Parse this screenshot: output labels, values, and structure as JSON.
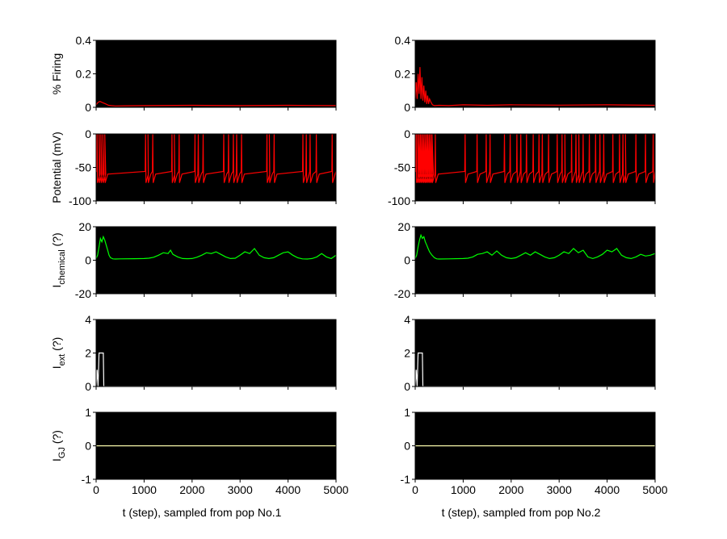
{
  "figure": {
    "background": "#ffffff",
    "axes_background": "#000000",
    "x_ticks": [
      "0",
      "1000",
      "2000",
      "3000",
      "4000",
      "5000"
    ],
    "columns": [
      {
        "xlabel": "t (step), sampled from pop No.1"
      },
      {
        "xlabel": "t (step), sampled from pop No.2"
      }
    ]
  },
  "chart_data": [
    {
      "type": "line",
      "panel": "firing-pop1",
      "ylabel": "% Firing",
      "ylim": [
        0,
        0.4
      ],
      "yticks": [
        "0",
        "0.2",
        "0.4"
      ],
      "xlim": [
        0,
        5000
      ],
      "color": "#ff0000",
      "grid": false,
      "x": [
        0,
        40,
        80,
        120,
        160,
        200,
        260,
        320,
        400,
        600,
        1000,
        2000,
        3000,
        4000,
        5000
      ],
      "values": [
        0.015,
        0.03,
        0.035,
        0.03,
        0.025,
        0.02,
        0.012,
        0.01,
        0.008,
        0.009,
        0.01,
        0.012,
        0.01,
        0.012,
        0.01
      ]
    },
    {
      "type": "line",
      "panel": "potential-pop1",
      "ylabel": "Potential (mV)",
      "ylim": [
        -100,
        0
      ],
      "yticks": [
        "-100",
        "-50",
        "0"
      ],
      "xlim": [
        0,
        5000
      ],
      "color": "#ff0000",
      "grid": false,
      "rest_mV": -56,
      "peak_mV": 0,
      "trough_mV": -73,
      "spike_times": [
        20,
        60,
        100,
        140,
        180,
        1030,
        1080,
        1180,
        1580,
        1630,
        1730,
        2060,
        2130,
        2230,
        2660,
        2760,
        2860,
        2930,
        3030,
        3560,
        3610,
        3710,
        4310,
        4380,
        4460,
        4590,
        4920
      ]
    },
    {
      "type": "line",
      "panel": "ichem-pop1",
      "ylabel": "Ichemical (?)",
      "ylabel_main": "I",
      "ylabel_sub": "chemical",
      "ylabel_unit": " (?)",
      "ylim": [
        -20,
        20
      ],
      "yticks": [
        "-20",
        "0",
        "20"
      ],
      "xlim": [
        0,
        5000
      ],
      "color": "#00ff00",
      "grid": false,
      "x": [
        0,
        30,
        60,
        90,
        120,
        150,
        180,
        210,
        240,
        270,
        300,
        350,
        400,
        500,
        800,
        1000,
        1100,
        1200,
        1300,
        1400,
        1500,
        1550,
        1600,
        1700,
        1800,
        1900,
        2000,
        2100,
        2200,
        2300,
        2400,
        2500,
        2600,
        2700,
        2800,
        2900,
        3000,
        3100,
        3200,
        3300,
        3400,
        3500,
        3600,
        3700,
        3800,
        3900,
        4000,
        4100,
        4200,
        4300,
        4400,
        4500,
        4600,
        4700,
        4800,
        4900,
        5000
      ],
      "values": [
        1,
        3,
        8,
        13,
        11,
        14,
        12,
        9,
        6,
        3,
        1.5,
        0.8,
        0.7,
        0.8,
        0.9,
        1,
        1.2,
        1.8,
        3,
        4.5,
        4,
        6,
        3.5,
        2,
        1,
        0.9,
        1,
        1.8,
        3,
        4.5,
        4,
        5,
        3.5,
        2,
        1,
        1.2,
        3,
        5,
        4,
        7,
        3,
        1.5,
        1,
        1.5,
        3,
        4.5,
        5,
        3,
        1.5,
        0.8,
        0.7,
        1,
        2,
        4,
        2,
        1,
        3
      ]
    },
    {
      "type": "line",
      "panel": "iext-pop1",
      "ylabel": "Iext (?)",
      "ylabel_main": "I",
      "ylabel_sub": "ext",
      "ylabel_unit": " (?)",
      "ylim": [
        0,
        4
      ],
      "yticks": [
        "0",
        "2",
        "4"
      ],
      "xlim": [
        0,
        5000
      ],
      "color": "#ffffff",
      "grid": false,
      "x": [
        0,
        20,
        40,
        60,
        80,
        100,
        120,
        150,
        160,
        5000
      ],
      "values": [
        0,
        1,
        0,
        2,
        2,
        2,
        2,
        2,
        0,
        0
      ]
    },
    {
      "type": "line",
      "panel": "igj-pop1",
      "ylabel": "IGJ (?)",
      "ylabel_main": "I",
      "ylabel_sub": "GJ",
      "ylabel_unit": " (?)",
      "ylim": [
        -1,
        1
      ],
      "yticks": [
        "-1",
        "0",
        "1"
      ],
      "xlim": [
        0,
        5000
      ],
      "color": "#ffffb0",
      "grid": false,
      "x": [
        0,
        5000
      ],
      "values": [
        0,
        0
      ]
    },
    {
      "type": "line",
      "panel": "firing-pop2",
      "ylabel": "",
      "ylim": [
        0,
        0.4
      ],
      "yticks": [
        "0",
        "0.2",
        "0.4"
      ],
      "xlim": [
        0,
        5000
      ],
      "color": "#ff0000",
      "grid": false,
      "x": [
        0,
        20,
        40,
        60,
        80,
        100,
        120,
        140,
        160,
        180,
        200,
        220,
        240,
        260,
        280,
        300,
        330,
        360,
        400,
        500,
        700,
        1000,
        1500,
        2000,
        3000,
        4000,
        5000
      ],
      "values": [
        0.05,
        0.15,
        0.05,
        0.2,
        0.08,
        0.24,
        0.05,
        0.18,
        0.04,
        0.13,
        0.03,
        0.1,
        0.02,
        0.07,
        0.02,
        0.05,
        0.03,
        0.015,
        0.01,
        0.012,
        0.01,
        0.015,
        0.012,
        0.015,
        0.013,
        0.015,
        0.012
      ]
    },
    {
      "type": "line",
      "panel": "potential-pop2",
      "ylabel": "",
      "ylim": [
        -100,
        0
      ],
      "yticks": [
        "-100",
        "-50",
        "0"
      ],
      "xlim": [
        0,
        5000
      ],
      "color": "#ff0000",
      "grid": false,
      "rest_mV": -56,
      "peak_mV": 0,
      "trough_mV": -73,
      "spike_times": [
        20,
        50,
        80,
        110,
        140,
        170,
        200,
        230,
        260,
        290,
        320,
        350,
        420,
        1040,
        1290,
        1480,
        1560,
        1860,
        1980,
        2120,
        2200,
        2320,
        2460,
        2580,
        2650,
        2780,
        2960,
        3060,
        3120,
        3260,
        3350,
        3410,
        3500,
        3630,
        3760,
        3850,
        3930,
        4120,
        4260,
        4330,
        4380,
        4600,
        4800,
        4960
      ]
    },
    {
      "type": "line",
      "panel": "ichem-pop2",
      "ylabel": "",
      "ylim": [
        -20,
        20
      ],
      "yticks": [
        "-20",
        "0",
        "20"
      ],
      "xlim": [
        0,
        5000
      ],
      "color": "#00ff00",
      "grid": false,
      "x": [
        0,
        30,
        60,
        90,
        120,
        150,
        180,
        210,
        240,
        270,
        300,
        350,
        400,
        450,
        500,
        700,
        1000,
        1100,
        1200,
        1300,
        1400,
        1500,
        1600,
        1700,
        1800,
        1900,
        2000,
        2100,
        2200,
        2300,
        2400,
        2500,
        2600,
        2700,
        2800,
        2900,
        3000,
        3100,
        3200,
        3300,
        3400,
        3500,
        3600,
        3700,
        3800,
        3900,
        4000,
        4100,
        4200,
        4300,
        4400,
        4500,
        4600,
        4700,
        4800,
        4900,
        5000
      ],
      "values": [
        1,
        3,
        8,
        12,
        15,
        13,
        14,
        11,
        9,
        7,
        5,
        3,
        1.5,
        0.8,
        0.7,
        0.8,
        1,
        1.2,
        2,
        3.5,
        4,
        5,
        3,
        5.5,
        3,
        1.5,
        1,
        1.5,
        3,
        4.5,
        3,
        5,
        3.5,
        2,
        1,
        1.5,
        3,
        5,
        4,
        7,
        4.5,
        6,
        2,
        1,
        2,
        3.5,
        6,
        5,
        7,
        3,
        1.5,
        1,
        2,
        3.5,
        2.5,
        3,
        4
      ]
    },
    {
      "type": "line",
      "panel": "iext-pop2",
      "ylabel": "",
      "ylim": [
        0,
        4
      ],
      "yticks": [
        "0",
        "2",
        "4"
      ],
      "xlim": [
        0,
        5000
      ],
      "color": "#ffffff",
      "grid": false,
      "x": [
        0,
        20,
        40,
        60,
        80,
        100,
        120,
        150,
        160,
        5000
      ],
      "values": [
        0,
        1,
        0,
        2,
        2,
        2,
        2,
        2,
        0,
        0
      ]
    },
    {
      "type": "line",
      "panel": "igj-pop2",
      "ylabel": "",
      "ylim": [
        -1,
        1
      ],
      "yticks": [
        "-1",
        "0",
        "1"
      ],
      "xlim": [
        0,
        5000
      ],
      "color": "#ffffb0",
      "grid": false,
      "x": [
        0,
        5000
      ],
      "values": [
        0,
        0
      ]
    }
  ]
}
